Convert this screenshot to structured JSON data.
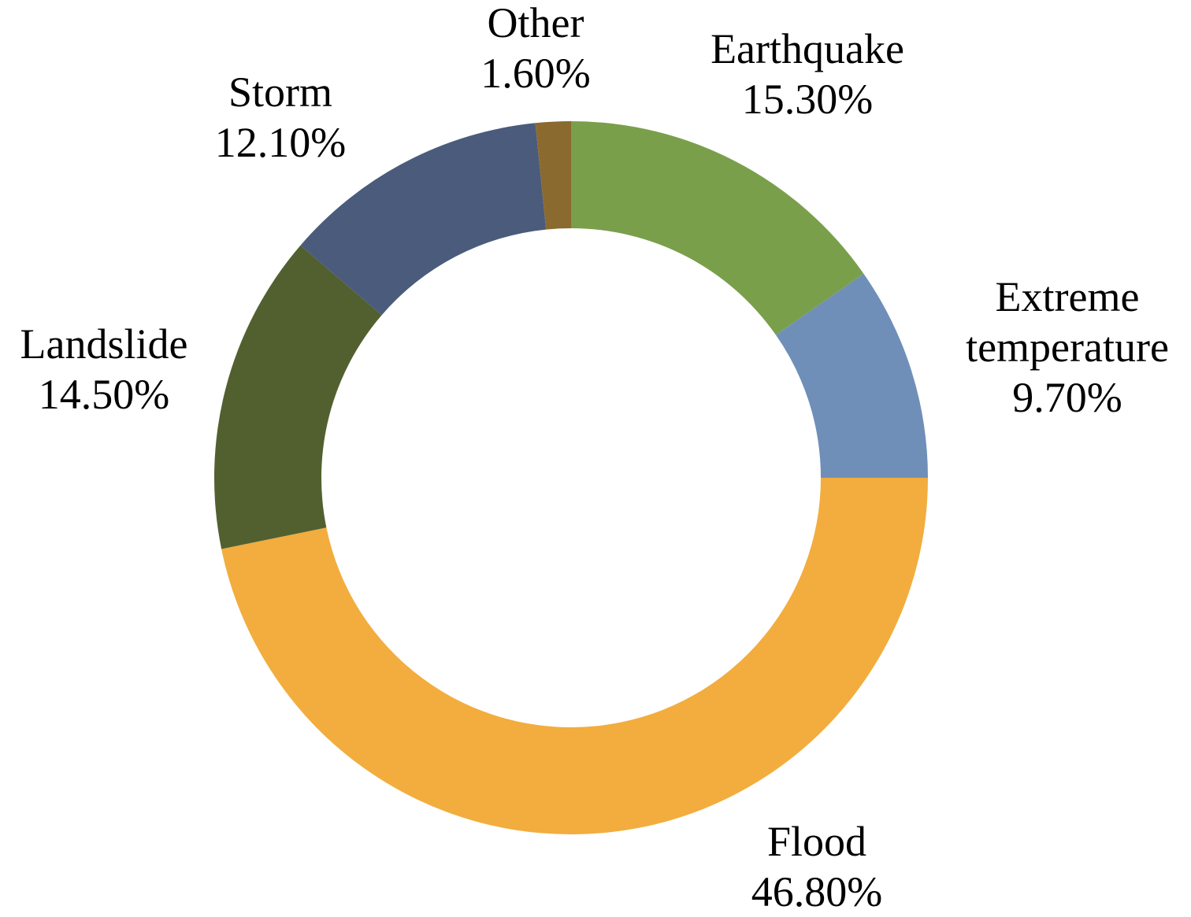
{
  "chart_data": {
    "type": "pie",
    "donut": true,
    "title": "",
    "legend": "none",
    "start": "top, clockwise",
    "slices": [
      {
        "label_lines": [
          "Earthquake"
        ],
        "value_label": "15.30%",
        "value": 15.3,
        "color": "#7a9f4b"
      },
      {
        "label_lines": [
          "Extreme",
          "temperature"
        ],
        "value_label": "9.70%",
        "value": 9.7,
        "color": "#6f8fb8"
      },
      {
        "label_lines": [
          "Flood"
        ],
        "value_label": "46.80%",
        "value": 46.8,
        "color": "#f2ad3e"
      },
      {
        "label_lines": [
          "Landslide"
        ],
        "value_label": "14.50%",
        "value": 14.5,
        "color": "#526030"
      },
      {
        "label_lines": [
          "Storm"
        ],
        "value_label": "12.10%",
        "value": 12.1,
        "color": "#4a5b7b"
      },
      {
        "label_lines": [
          "Other"
        ],
        "value_label": "1.60%",
        "value": 1.6,
        "color": "#8a6a2e"
      }
    ]
  }
}
